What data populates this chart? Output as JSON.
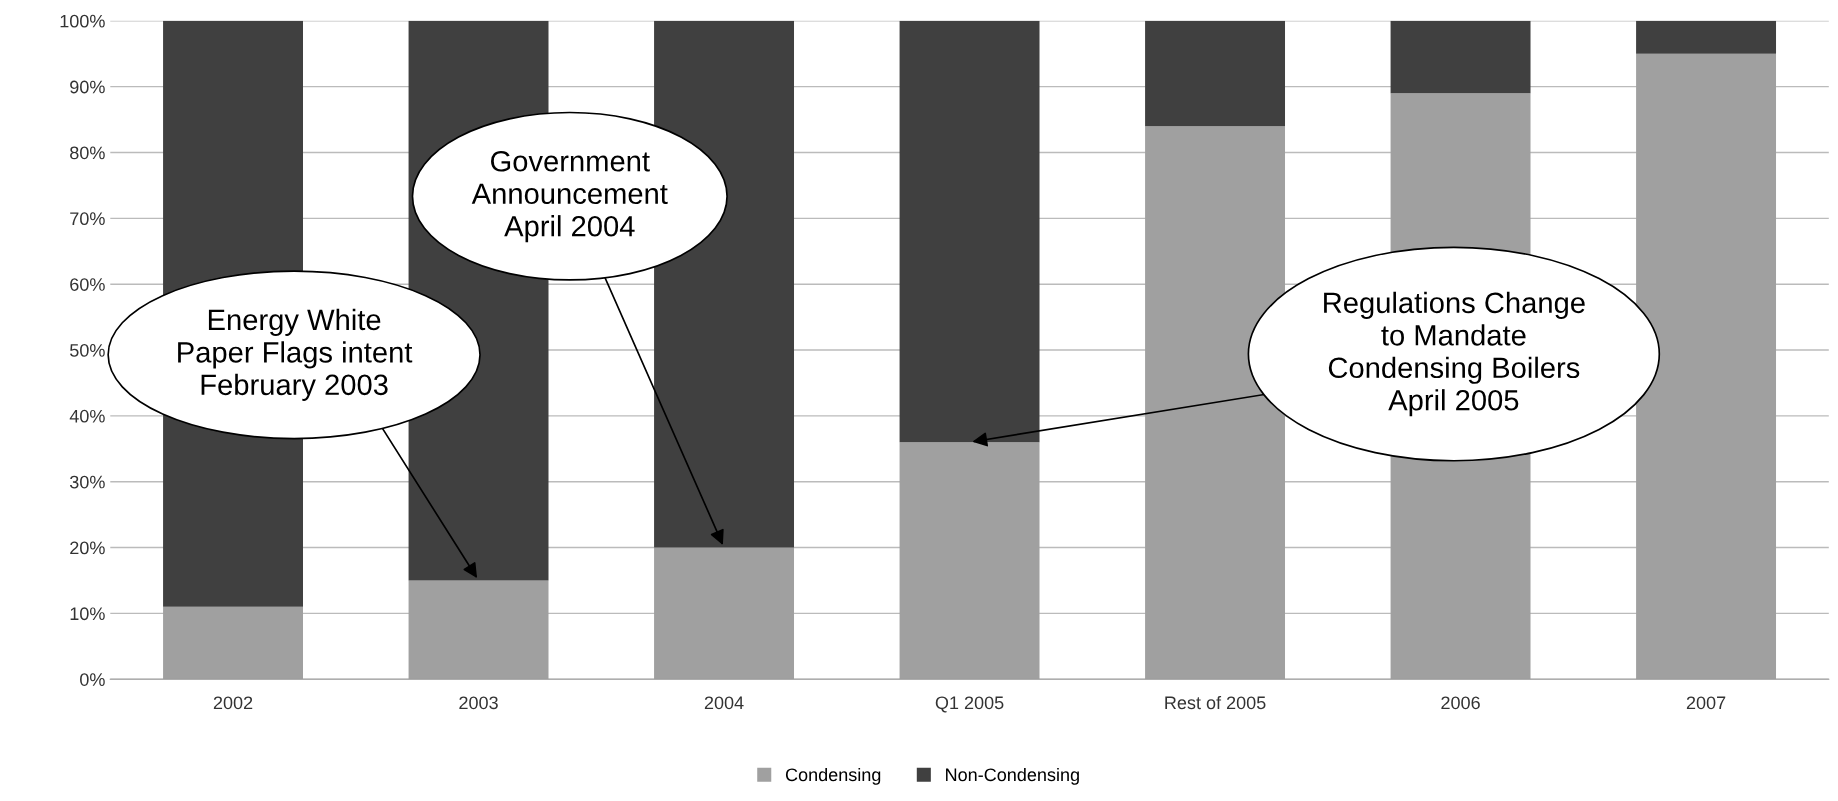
{
  "chart_data": {
    "type": "bar",
    "stacked": true,
    "categories": [
      "2002",
      "2003",
      "2004",
      "Q1 2005",
      "Rest of 2005",
      "2006",
      "2007"
    ],
    "series": [
      {
        "name": "Condensing",
        "color": "#a0a0a0",
        "values": [
          11,
          15,
          20,
          36,
          84,
          89,
          95
        ]
      },
      {
        "name": "Non-Condensing",
        "color": "#404040",
        "values": [
          89,
          85,
          80,
          64,
          16,
          11,
          5
        ]
      }
    ],
    "ylim": [
      0,
      100
    ],
    "yticks": [
      {
        "value": 0,
        "label": "0%"
      },
      {
        "value": 10,
        "label": "10%"
      },
      {
        "value": 20,
        "label": "20%"
      },
      {
        "value": 30,
        "label": "30%"
      },
      {
        "value": 40,
        "label": "40%"
      },
      {
        "value": 50,
        "label": "50%"
      },
      {
        "value": 60,
        "label": "60%"
      },
      {
        "value": 70,
        "label": "70%"
      },
      {
        "value": 80,
        "label": "80%"
      },
      {
        "value": 90,
        "label": "90%"
      },
      {
        "value": 100,
        "label": "100%"
      }
    ],
    "grid": "y",
    "legend": "bottom",
    "annotations": [
      {
        "text": "Energy White\nPaper Flags intent\nFebruary 2003",
        "x": "2003",
        "y": 15
      },
      {
        "text": "Government\nAnnouncement\nApril 2004",
        "x": "2004",
        "y": 20
      },
      {
        "text": "Regulations Change\nto Mandate\nCondensing Boilers\nApril 2005",
        "x": "Q1 2005",
        "y": 36
      }
    ]
  }
}
